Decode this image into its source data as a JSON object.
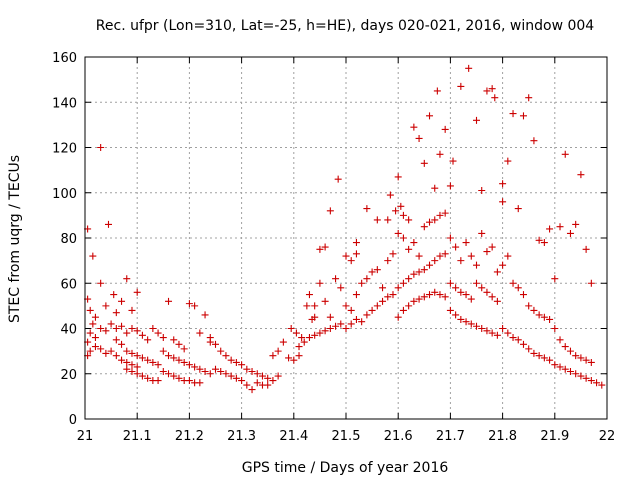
{
  "chart_data": {
    "type": "scatter",
    "title": "Rec. ufpr (Lon=310, Lat=-25, h=HE), days 020-021, 2016, window 004",
    "xlabel": "GPS time / Days of year 2016",
    "ylabel": "STEC from uqrg / TECUs",
    "xlim": [
      21,
      22
    ],
    "ylim": [
      0,
      160
    ],
    "x_ticks": [
      "21",
      "21.1",
      "21.2",
      "21.3",
      "21.4",
      "21.5",
      "21.6",
      "21.7",
      "21.8",
      "21.9",
      "22"
    ],
    "y_ticks": [
      "0",
      "20",
      "40",
      "60",
      "80",
      "100",
      "120",
      "140",
      "160"
    ],
    "grid": true,
    "marker": "plus",
    "color": "#cc0000",
    "series": [
      {
        "points": [
          [
            21.005,
            84
          ],
          [
            21.015,
            72
          ],
          [
            21.03,
            120
          ],
          [
            21.045,
            86
          ],
          [
            21.005,
            53
          ],
          [
            21.01,
            48
          ],
          [
            21.02,
            45
          ],
          [
            21.03,
            60
          ],
          [
            21.04,
            50
          ],
          [
            21.055,
            55
          ],
          [
            21.06,
            47
          ],
          [
            21.07,
            52
          ],
          [
            21.08,
            62
          ],
          [
            21.09,
            48
          ],
          [
            21.1,
            56
          ],
          [
            21.005,
            34
          ],
          [
            21.01,
            38
          ],
          [
            21.015,
            42
          ],
          [
            21.02,
            36
          ],
          [
            21.03,
            40
          ],
          [
            21.04,
            39
          ],
          [
            21.05,
            42
          ],
          [
            21.06,
            40
          ],
          [
            21.07,
            41
          ],
          [
            21.08,
            38
          ],
          [
            21.09,
            40
          ],
          [
            21.1,
            39
          ],
          [
            21.11,
            37
          ],
          [
            21.12,
            35
          ],
          [
            21.005,
            28
          ],
          [
            21.01,
            30
          ],
          [
            21.02,
            32
          ],
          [
            21.03,
            31
          ],
          [
            21.04,
            29
          ],
          [
            21.05,
            30
          ],
          [
            21.06,
            28
          ],
          [
            21.07,
            26
          ],
          [
            21.08,
            25
          ],
          [
            21.09,
            24
          ],
          [
            21.1,
            23
          ],
          [
            21.06,
            35
          ],
          [
            21.07,
            33
          ],
          [
            21.08,
            30
          ],
          [
            21.09,
            29
          ],
          [
            21.1,
            28
          ],
          [
            21.11,
            27
          ],
          [
            21.12,
            26
          ],
          [
            21.13,
            25
          ],
          [
            21.14,
            24
          ],
          [
            21.08,
            22
          ],
          [
            21.09,
            21
          ],
          [
            21.1,
            20
          ],
          [
            21.11,
            19
          ],
          [
            21.12,
            18
          ],
          [
            21.13,
            17
          ],
          [
            21.14,
            17
          ],
          [
            21.13,
            40
          ],
          [
            21.14,
            38
          ],
          [
            21.15,
            36
          ],
          [
            21.16,
            52
          ],
          [
            21.17,
            35
          ],
          [
            21.18,
            33
          ],
          [
            21.19,
            31
          ],
          [
            21.2,
            51
          ],
          [
            21.21,
            50
          ],
          [
            21.22,
            38
          ],
          [
            21.23,
            46
          ],
          [
            21.24,
            36
          ],
          [
            21.15,
            30
          ],
          [
            21.16,
            28
          ],
          [
            21.17,
            27
          ],
          [
            21.18,
            26
          ],
          [
            21.19,
            25
          ],
          [
            21.2,
            24
          ],
          [
            21.21,
            23
          ],
          [
            21.22,
            22
          ],
          [
            21.23,
            21
          ],
          [
            21.24,
            20
          ],
          [
            21.15,
            21
          ],
          [
            21.16,
            20
          ],
          [
            21.17,
            19
          ],
          [
            21.18,
            18
          ],
          [
            21.19,
            17
          ],
          [
            21.2,
            17
          ],
          [
            21.21,
            16
          ],
          [
            21.22,
            16
          ],
          [
            21.24,
            34
          ],
          [
            21.25,
            33
          ],
          [
            21.26,
            30
          ],
          [
            21.27,
            28
          ],
          [
            21.28,
            26
          ],
          [
            21.29,
            25
          ],
          [
            21.3,
            24
          ],
          [
            21.31,
            22
          ],
          [
            21.32,
            21
          ],
          [
            21.33,
            20
          ],
          [
            21.34,
            19
          ],
          [
            21.35,
            18
          ],
          [
            21.25,
            22
          ],
          [
            21.26,
            21
          ],
          [
            21.27,
            20
          ],
          [
            21.28,
            19
          ],
          [
            21.29,
            18
          ],
          [
            21.3,
            17
          ],
          [
            21.31,
            15
          ],
          [
            21.32,
            13
          ],
          [
            21.33,
            16
          ],
          [
            21.34,
            15
          ],
          [
            21.35,
            15
          ],
          [
            21.36,
            17
          ],
          [
            21.37,
            19
          ],
          [
            21.36,
            28
          ],
          [
            21.37,
            30
          ],
          [
            21.38,
            34
          ],
          [
            21.39,
            27
          ],
          [
            21.4,
            26
          ],
          [
            21.41,
            28
          ],
          [
            21.395,
            40
          ],
          [
            21.405,
            38
          ],
          [
            21.415,
            36
          ],
          [
            21.425,
            50
          ],
          [
            21.435,
            44
          ],
          [
            21.44,
            45
          ],
          [
            21.45,
            75
          ],
          [
            21.46,
            76
          ],
          [
            21.47,
            92
          ],
          [
            21.485,
            106
          ],
          [
            21.41,
            32
          ],
          [
            21.42,
            34
          ],
          [
            21.43,
            36
          ],
          [
            21.44,
            37
          ],
          [
            21.45,
            38
          ],
          [
            21.46,
            39
          ],
          [
            21.47,
            40
          ],
          [
            21.48,
            41
          ],
          [
            21.49,
            42
          ],
          [
            21.43,
            55
          ],
          [
            21.44,
            50
          ],
          [
            21.45,
            60
          ],
          [
            21.46,
            52
          ],
          [
            21.47,
            45
          ],
          [
            21.48,
            62
          ],
          [
            21.49,
            58
          ],
          [
            21.5,
            72
          ],
          [
            21.51,
            70
          ],
          [
            21.52,
            73
          ],
          [
            21.5,
            50
          ],
          [
            21.51,
            48
          ],
          [
            21.52,
            55
          ],
          [
            21.53,
            60
          ],
          [
            21.54,
            62
          ],
          [
            21.55,
            65
          ],
          [
            21.56,
            66
          ],
          [
            21.57,
            58
          ],
          [
            21.58,
            70
          ],
          [
            21.59,
            73
          ],
          [
            21.5,
            40
          ],
          [
            21.51,
            42
          ],
          [
            21.52,
            44
          ],
          [
            21.53,
            43
          ],
          [
            21.54,
            46
          ],
          [
            21.55,
            48
          ],
          [
            21.56,
            50
          ],
          [
            21.57,
            52
          ],
          [
            21.58,
            54
          ],
          [
            21.59,
            55
          ],
          [
            21.52,
            78
          ],
          [
            21.54,
            93
          ],
          [
            21.56,
            88
          ],
          [
            21.58,
            88
          ],
          [
            21.585,
            99
          ],
          [
            21.595,
            92
          ],
          [
            21.6,
            107
          ],
          [
            21.605,
            94
          ],
          [
            21.61,
            90
          ],
          [
            21.62,
            88
          ],
          [
            21.63,
            129
          ],
          [
            21.64,
            124
          ],
          [
            21.6,
            82
          ],
          [
            21.61,
            80
          ],
          [
            21.62,
            75
          ],
          [
            21.63,
            78
          ],
          [
            21.64,
            72
          ],
          [
            21.65,
            85
          ],
          [
            21.66,
            87
          ],
          [
            21.67,
            88
          ],
          [
            21.68,
            90
          ],
          [
            21.69,
            91
          ],
          [
            21.6,
            58
          ],
          [
            21.61,
            60
          ],
          [
            21.62,
            62
          ],
          [
            21.63,
            64
          ],
          [
            21.64,
            65
          ],
          [
            21.65,
            66
          ],
          [
            21.66,
            68
          ],
          [
            21.67,
            70
          ],
          [
            21.68,
            72
          ],
          [
            21.69,
            73
          ],
          [
            21.6,
            45
          ],
          [
            21.61,
            48
          ],
          [
            21.62,
            50
          ],
          [
            21.63,
            52
          ],
          [
            21.64,
            53
          ],
          [
            21.65,
            54
          ],
          [
            21.66,
            55
          ],
          [
            21.67,
            56
          ],
          [
            21.68,
            55
          ],
          [
            21.69,
            54
          ],
          [
            21.65,
            113
          ],
          [
            21.66,
            134
          ],
          [
            21.67,
            102
          ],
          [
            21.675,
            145
          ],
          [
            21.68,
            117
          ],
          [
            21.69,
            128
          ],
          [
            21.7,
            103
          ],
          [
            21.705,
            114
          ],
          [
            21.72,
            147
          ],
          [
            21.735,
            155
          ],
          [
            21.75,
            132
          ],
          [
            21.76,
            101
          ],
          [
            21.77,
            145
          ],
          [
            21.78,
            146
          ],
          [
            21.785,
            142
          ],
          [
            21.8,
            104
          ],
          [
            21.7,
            80
          ],
          [
            21.71,
            76
          ],
          [
            21.72,
            70
          ],
          [
            21.73,
            78
          ],
          [
            21.74,
            72
          ],
          [
            21.75,
            68
          ],
          [
            21.76,
            82
          ],
          [
            21.77,
            74
          ],
          [
            21.78,
            76
          ],
          [
            21.79,
            65
          ],
          [
            21.7,
            60
          ],
          [
            21.71,
            58
          ],
          [
            21.72,
            56
          ],
          [
            21.73,
            55
          ],
          [
            21.74,
            53
          ],
          [
            21.75,
            60
          ],
          [
            21.76,
            58
          ],
          [
            21.77,
            56
          ],
          [
            21.78,
            54
          ],
          [
            21.79,
            52
          ],
          [
            21.7,
            48
          ],
          [
            21.71,
            46
          ],
          [
            21.72,
            44
          ],
          [
            21.73,
            43
          ],
          [
            21.74,
            42
          ],
          [
            21.75,
            41
          ],
          [
            21.76,
            40
          ],
          [
            21.77,
            39
          ],
          [
            21.78,
            38
          ],
          [
            21.79,
            37
          ],
          [
            21.8,
            96
          ],
          [
            21.81,
            114
          ],
          [
            21.82,
            135
          ],
          [
            21.83,
            93
          ],
          [
            21.84,
            134
          ],
          [
            21.85,
            142
          ],
          [
            21.86,
            123
          ],
          [
            21.87,
            79
          ],
          [
            21.88,
            78
          ],
          [
            21.89,
            84
          ],
          [
            21.8,
            68
          ],
          [
            21.81,
            72
          ],
          [
            21.82,
            60
          ],
          [
            21.83,
            58
          ],
          [
            21.84,
            55
          ],
          [
            21.85,
            50
          ],
          [
            21.86,
            48
          ],
          [
            21.87,
            46
          ],
          [
            21.88,
            45
          ],
          [
            21.89,
            44
          ],
          [
            21.8,
            40
          ],
          [
            21.81,
            38
          ],
          [
            21.82,
            36
          ],
          [
            21.83,
            35
          ],
          [
            21.84,
            33
          ],
          [
            21.85,
            31
          ],
          [
            21.86,
            29
          ],
          [
            21.87,
            28
          ],
          [
            21.88,
            27
          ],
          [
            21.89,
            26
          ],
          [
            21.9,
            62
          ],
          [
            21.91,
            85
          ],
          [
            21.92,
            117
          ],
          [
            21.93,
            82
          ],
          [
            21.94,
            86
          ],
          [
            21.95,
            108
          ],
          [
            21.96,
            75
          ],
          [
            21.97,
            60
          ],
          [
            21.9,
            40
          ],
          [
            21.91,
            35
          ],
          [
            21.92,
            32
          ],
          [
            21.93,
            30
          ],
          [
            21.94,
            28
          ],
          [
            21.95,
            27
          ],
          [
            21.96,
            26
          ],
          [
            21.97,
            25
          ],
          [
            21.9,
            24
          ],
          [
            21.91,
            23
          ],
          [
            21.92,
            22
          ],
          [
            21.93,
            21
          ],
          [
            21.94,
            20
          ],
          [
            21.95,
            19
          ],
          [
            21.96,
            18
          ],
          [
            21.97,
            17
          ],
          [
            21.98,
            16
          ],
          [
            21.99,
            15
          ]
        ]
      }
    ]
  }
}
